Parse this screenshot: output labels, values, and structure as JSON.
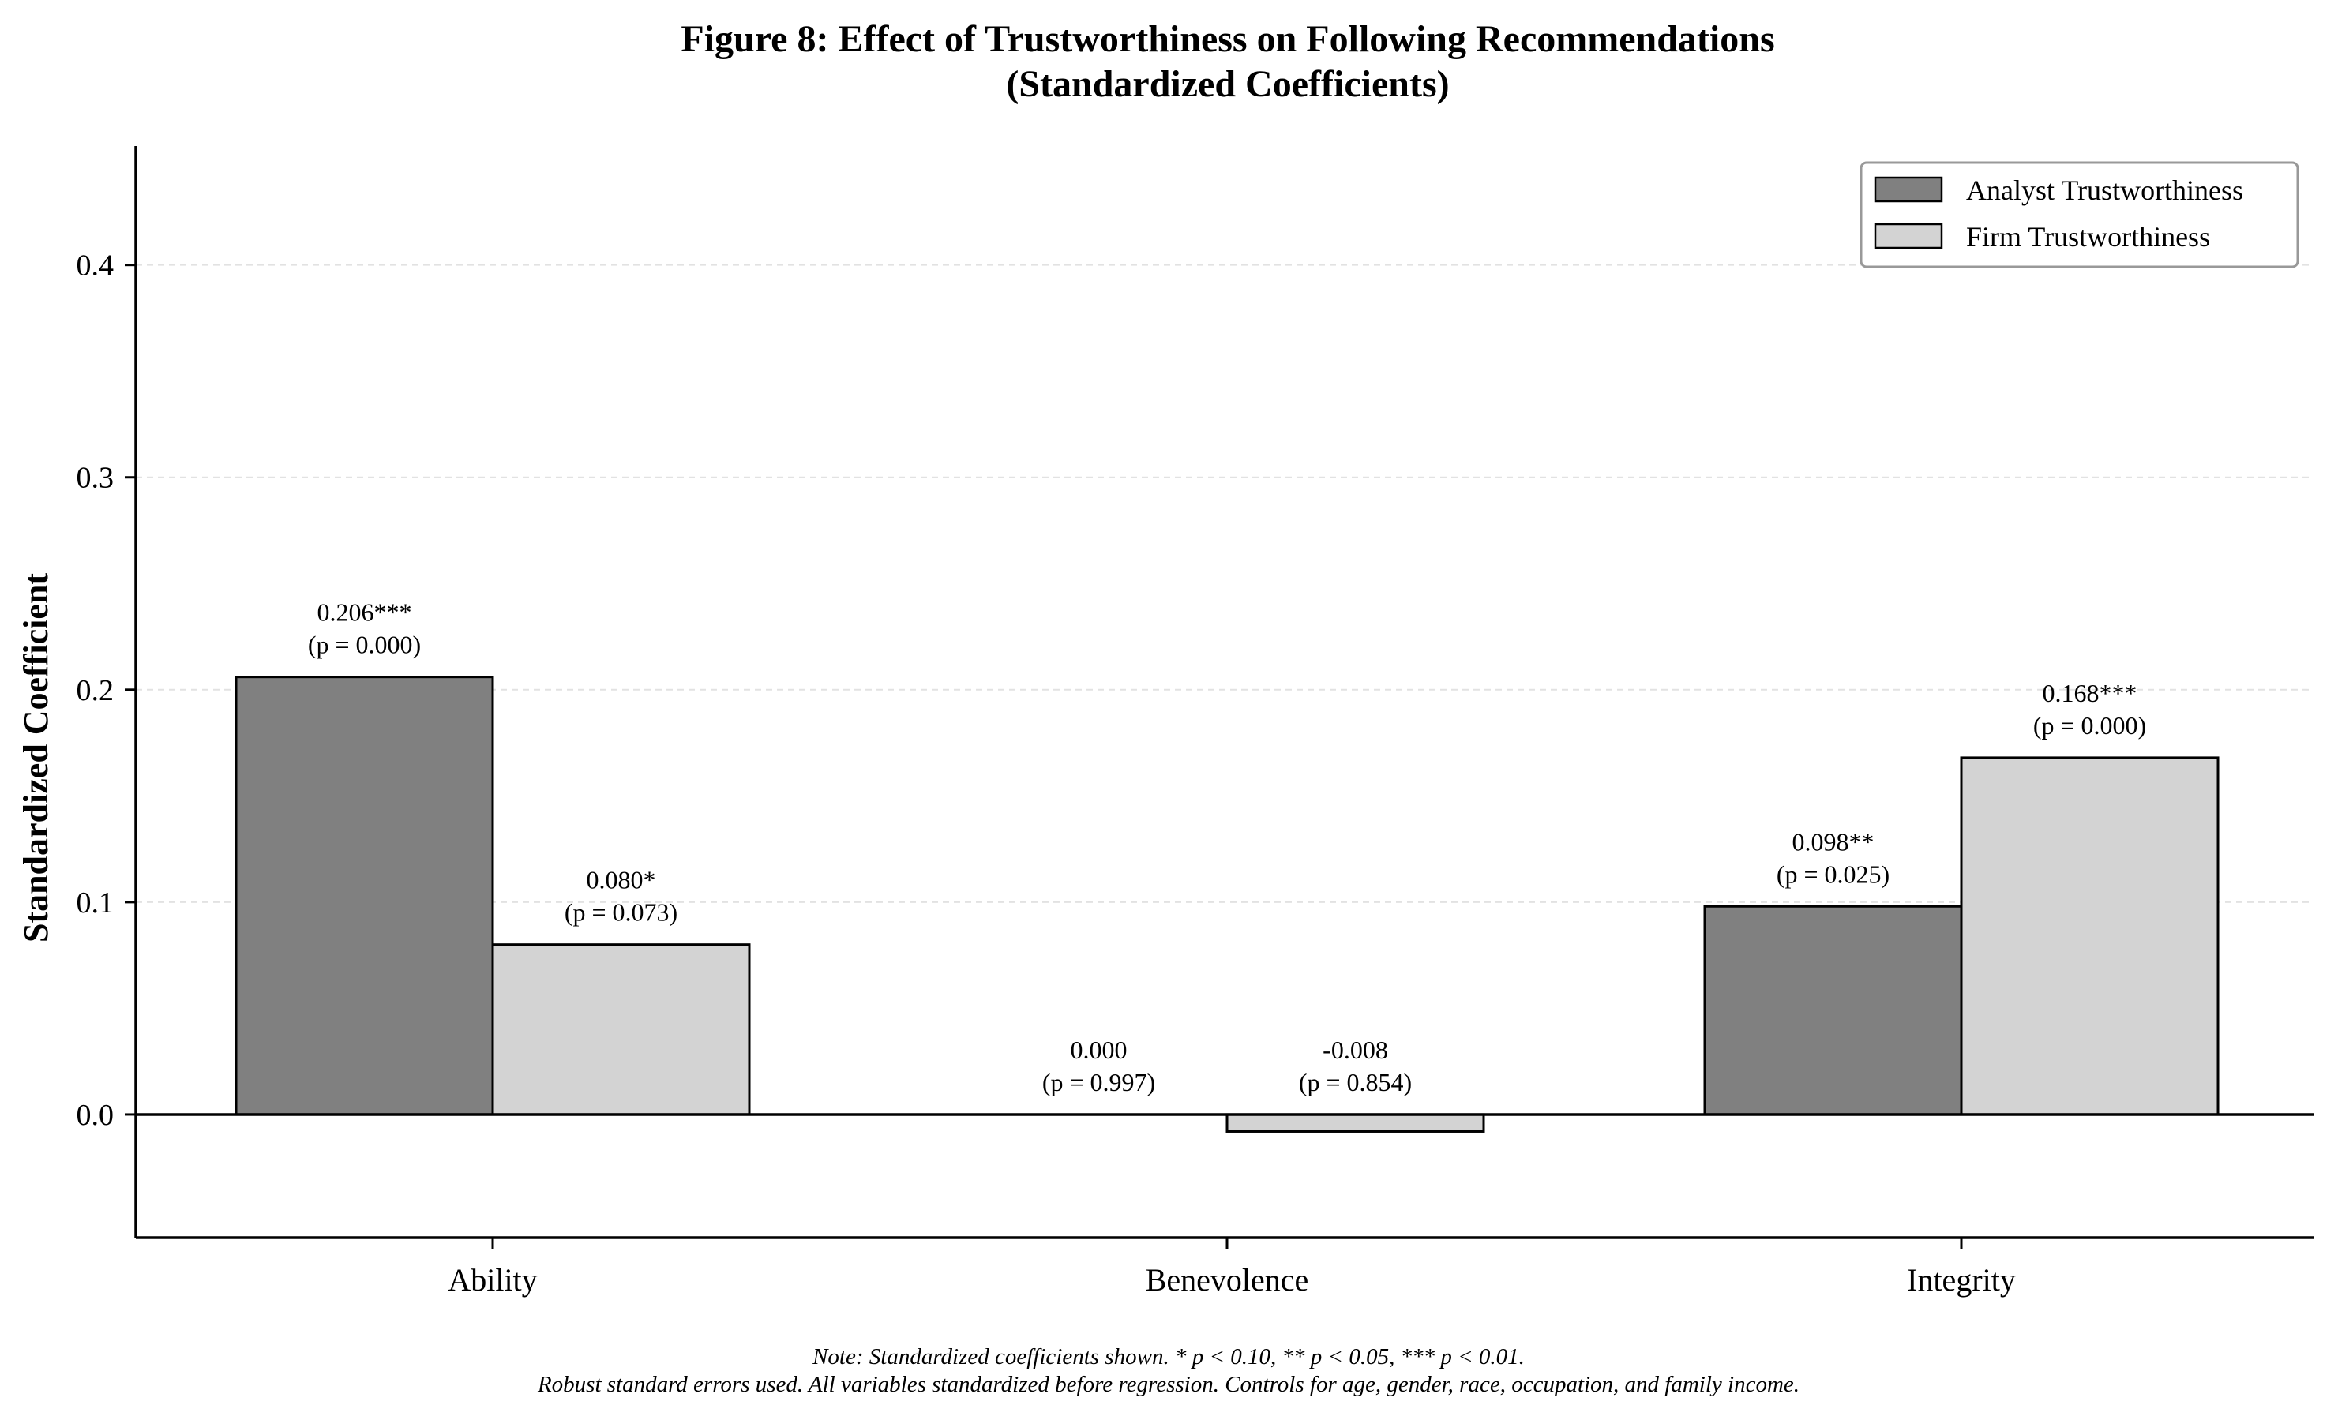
{
  "chart_data": {
    "type": "bar",
    "title": "Figure 8: Effect of Trustworthiness on Following Recommendations",
    "subtitle": "(Standardized Coefficients)",
    "xlabel": "",
    "ylabel": "Standardized Coefficient",
    "categories": [
      "Ability",
      "Benevolence",
      "Integrity"
    ],
    "ylim": [
      -0.058,
      0.456
    ],
    "yticks": [
      "0.0",
      "0.1",
      "0.2",
      "0.3",
      "0.4"
    ],
    "grid": true,
    "legend_position": "top-right",
    "series": [
      {
        "name": "Analyst Trustworthiness",
        "color": "#808080",
        "values": [
          0.206,
          0.0,
          0.098
        ],
        "labels": [
          "0.206***",
          "0.000",
          "0.098**"
        ],
        "p_labels": [
          "(p = 0.000)",
          "(p = 0.997)",
          "(p = 0.025)"
        ]
      },
      {
        "name": "Firm Trustworthiness",
        "color": "#d3d3d3",
        "values": [
          0.08,
          -0.008,
          0.168
        ],
        "labels": [
          "0.080*",
          "-0.008",
          "0.168***"
        ],
        "p_labels": [
          "(p = 0.073)",
          "(p = 0.854)",
          "(p = 0.000)"
        ]
      }
    ],
    "note_line1": "Note: Standardized coefficients shown. * p < 0.10, ** p < 0.05, *** p < 0.01.",
    "note_line2": "Robust standard errors used. All variables standardized before regression. Controls for age, gender, race, occupation, and family income."
  }
}
